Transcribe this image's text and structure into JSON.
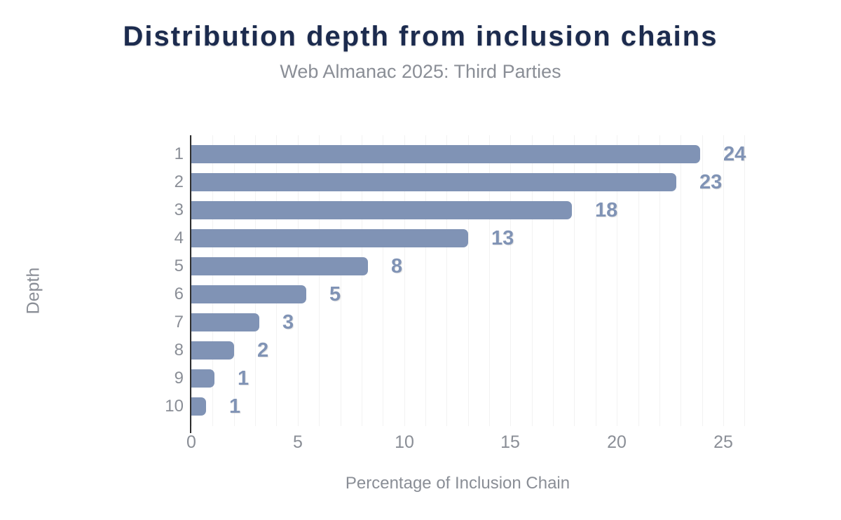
{
  "colors": {
    "bar": "#8093b5",
    "value_label": "#8093b5",
    "title": "#1c2b4e",
    "muted_text": "#8a8e96",
    "gridline": "#f2f2f2",
    "axis_line": "#2e2e2e",
    "background": "#ffffff"
  },
  "chart_data": {
    "type": "bar",
    "orientation": "horizontal",
    "title": "Distribution depth from inclusion chains",
    "subtitle": "Web Almanac 2025: Third Parties",
    "xlabel": "Percentage of Inclusion Chain",
    "ylabel": "Depth",
    "categories": [
      "1",
      "2",
      "3",
      "4",
      "5",
      "6",
      "7",
      "8",
      "9",
      "10"
    ],
    "values": [
      23.9,
      22.8,
      17.9,
      13.0,
      8.3,
      5.4,
      3.2,
      2.0,
      1.1,
      0.7
    ],
    "data_labels": [
      "24",
      "23",
      "18",
      "13",
      "8",
      "5",
      "3",
      "2",
      "1",
      "1"
    ],
    "xticks": [
      0,
      5,
      10,
      15,
      20,
      25
    ],
    "xlim": [
      0,
      26.4
    ],
    "grid": "vertical gridlines every 1 unit",
    "legend": "none"
  }
}
